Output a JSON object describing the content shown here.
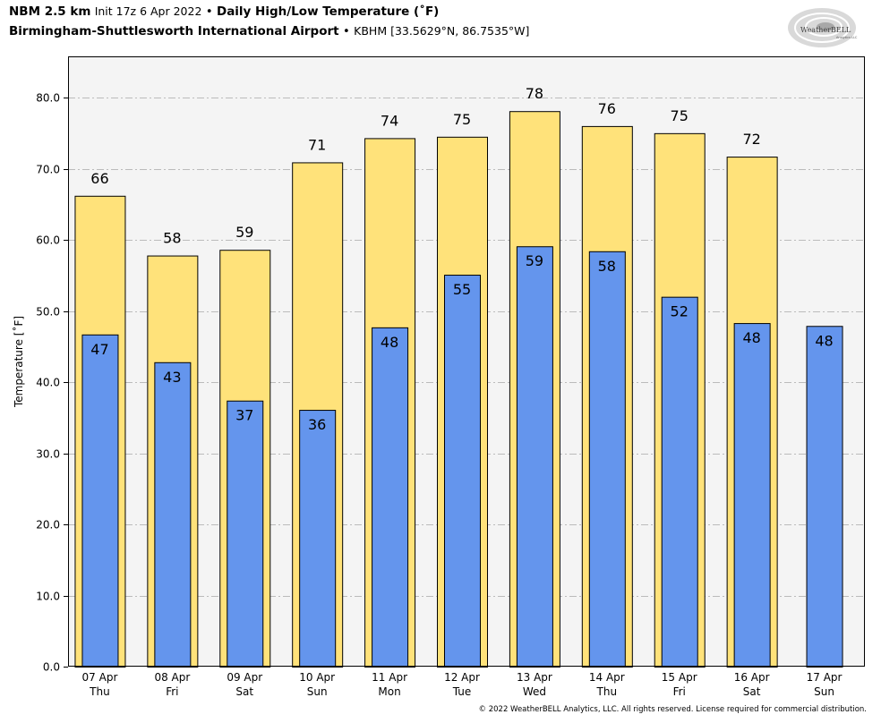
{
  "header": {
    "model": "NBM 2.5 km",
    "init": "Init 17z 6 Apr 2022",
    "separator": "•",
    "product": "Daily High/Low Temperature (˚F)",
    "station_name": "Birmingham-Shuttlesworth International Airport",
    "station_info": "KBHM [33.5629°N, 86.7535°W]"
  },
  "logo": {
    "text_main": "WeatherBELL",
    "text_sub": "Analytics LLC"
  },
  "footer": {
    "copyright": "© 2022 WeatherBELL Analytics, LLC. All rights reserved. License required for commercial distribution."
  },
  "colors": {
    "high": "#FFE27A",
    "low": "#6495ED",
    "plot_bg": "#F4F4F4",
    "grid": "#BBBBBB"
  },
  "chart_data": {
    "type": "bar",
    "title": "Daily High/Low Temperature (˚F)",
    "xlabel": "",
    "ylabel": "Temperature [˚F]",
    "ylim": [
      0,
      85.8
    ],
    "yticks": [
      0,
      10,
      20,
      30,
      40,
      50,
      60,
      70,
      80
    ],
    "ytick_labels": [
      "0.0",
      "10.0",
      "20.0",
      "30.0",
      "40.0",
      "50.0",
      "60.0",
      "70.0",
      "80.0"
    ],
    "grid": true,
    "categories": [
      "07 Apr",
      "08 Apr",
      "09 Apr",
      "10 Apr",
      "11 Apr",
      "12 Apr",
      "13 Apr",
      "14 Apr",
      "15 Apr",
      "16 Apr",
      "17 Apr"
    ],
    "days": [
      "Thu",
      "Fri",
      "Sat",
      "Sun",
      "Mon",
      "Tue",
      "Wed",
      "Thu",
      "Fri",
      "Sat",
      "Sun"
    ],
    "series": [
      {
        "name": "High",
        "values": [
          66.2,
          57.8,
          58.6,
          70.9,
          74.3,
          74.5,
          78.1,
          76.0,
          75.0,
          71.7,
          null
        ],
        "labels": [
          "66",
          "58",
          "59",
          "71",
          "74",
          "75",
          "78",
          "76",
          "75",
          "72",
          ""
        ]
      },
      {
        "name": "Low",
        "values": [
          46.7,
          42.8,
          37.4,
          36.1,
          47.7,
          55.1,
          59.1,
          58.4,
          52.0,
          48.3,
          47.9
        ],
        "labels": [
          "47",
          "43",
          "37",
          "36",
          "48",
          "55",
          "59",
          "58",
          "52",
          "48",
          "48"
        ]
      }
    ]
  }
}
